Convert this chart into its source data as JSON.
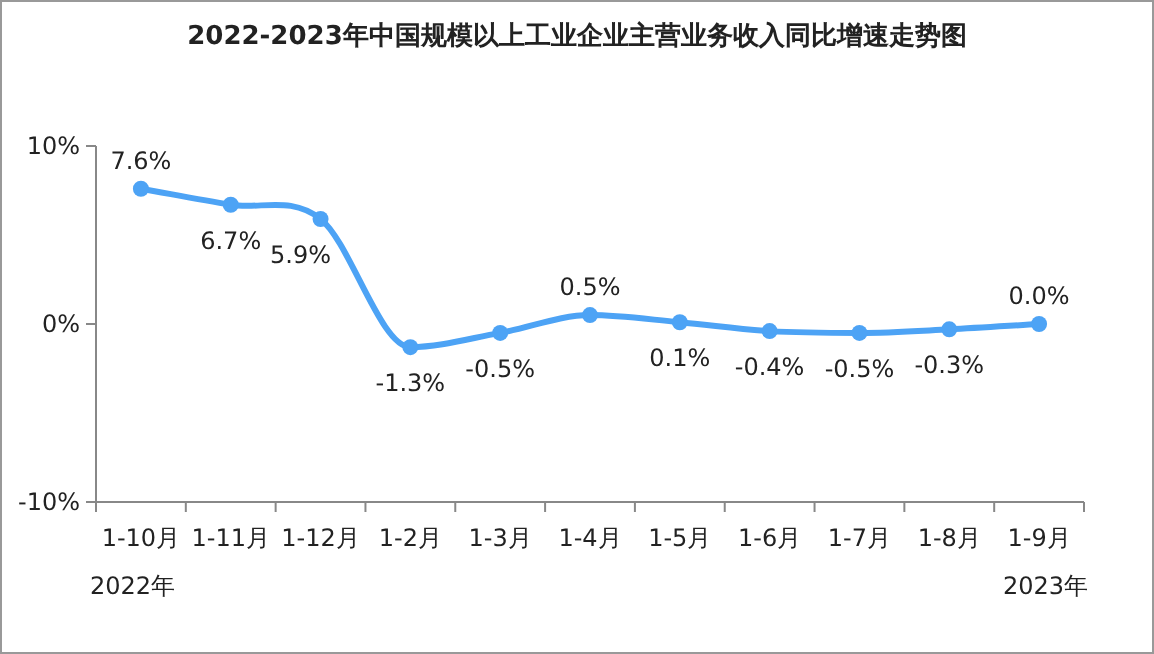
{
  "chart_data": {
    "type": "line",
    "title": "2022-2023年中国规模以上工业企业主营业务收入同比增速走势图",
    "categories": [
      "1-10月",
      "1-11月",
      "1-12月",
      "1-2月",
      "1-3月",
      "1-4月",
      "1-5月",
      "1-6月",
      "1-7月",
      "1-8月",
      "1-9月"
    ],
    "series": [
      {
        "color": "#4da3f5",
        "values": [
          7.6,
          6.7,
          5.9,
          -1.3,
          -0.5,
          0.5,
          0.1,
          -0.4,
          -0.5,
          -0.3,
          0.0
        ],
        "value_labels": [
          "7.6%",
          "6.7%",
          "5.9%",
          "-1.3%",
          "-0.5%",
          "0.5%",
          "0.1%",
          "-0.4%",
          "-0.5%",
          "-0.3%",
          "0.0%"
        ]
      }
    ],
    "ylim": [
      -10,
      10
    ],
    "yticks": [
      {
        "value": -10,
        "label": "-10%"
      },
      {
        "value": 0,
        "label": "0%"
      },
      {
        "value": 10,
        "label": "10%"
      }
    ],
    "marker": "circle",
    "grid": false,
    "annotations": [
      "2022年",
      "2023年"
    ]
  }
}
